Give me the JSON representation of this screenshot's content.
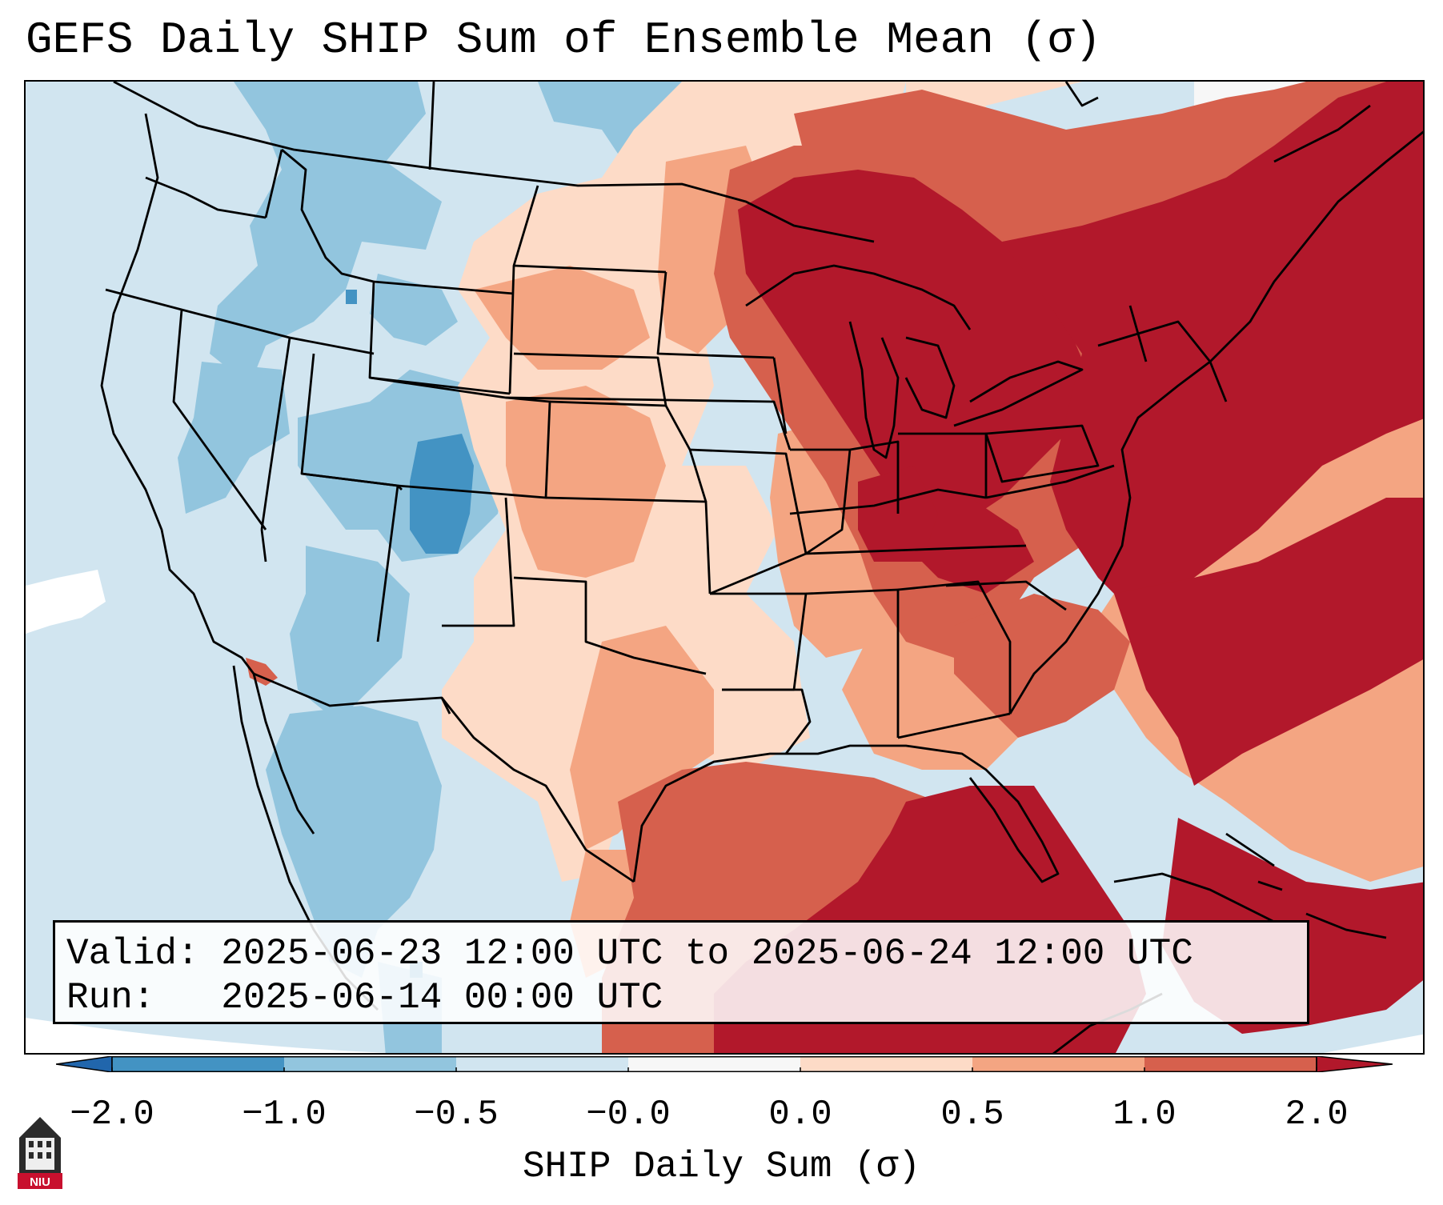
{
  "title": "GEFS Daily SHIP Sum of Ensemble Mean (σ)",
  "info": {
    "valid": "Valid: 2025-06-23 12:00 UTC to 2025-06-24 12:00 UTC",
    "run": "Run:   2025-06-14 00:00 UTC"
  },
  "colorbar": {
    "label": "SHIP Daily Sum (σ)",
    "ticks": [
      "−2.0",
      "−1.0",
      "−0.5",
      "−0.0",
      "0.0",
      "0.5",
      "1.0",
      "2.0"
    ],
    "bins": [
      {
        "range": "< -2.0",
        "color": "#2166ac"
      },
      {
        "range": "-2.0 to -1.0",
        "color": "#4393c3"
      },
      {
        "range": "-1.0 to -0.5",
        "color": "#92c5de"
      },
      {
        "range": "-0.5 to -0.0",
        "color": "#d1e5f0"
      },
      {
        "range": "-0.0 to 0.0",
        "color": "#f7f7f7"
      },
      {
        "range": "0.0 to 0.5",
        "color": "#fddbc7"
      },
      {
        "range": "0.5 to 1.0",
        "color": "#f4a582"
      },
      {
        "range": "1.0 to 2.0",
        "color": "#d6604d"
      },
      {
        "range": "> 2.0",
        "color": "#b2182b"
      }
    ]
  },
  "map": {
    "description_region": "Contiguous United States with Mexico, Canada and Caribbean",
    "palette": {
      "ocean_default": "#d1e5f0",
      "outside_domain": "#ffffff",
      "border_color": "#000000"
    }
  },
  "logo": {
    "text": "NIU"
  }
}
